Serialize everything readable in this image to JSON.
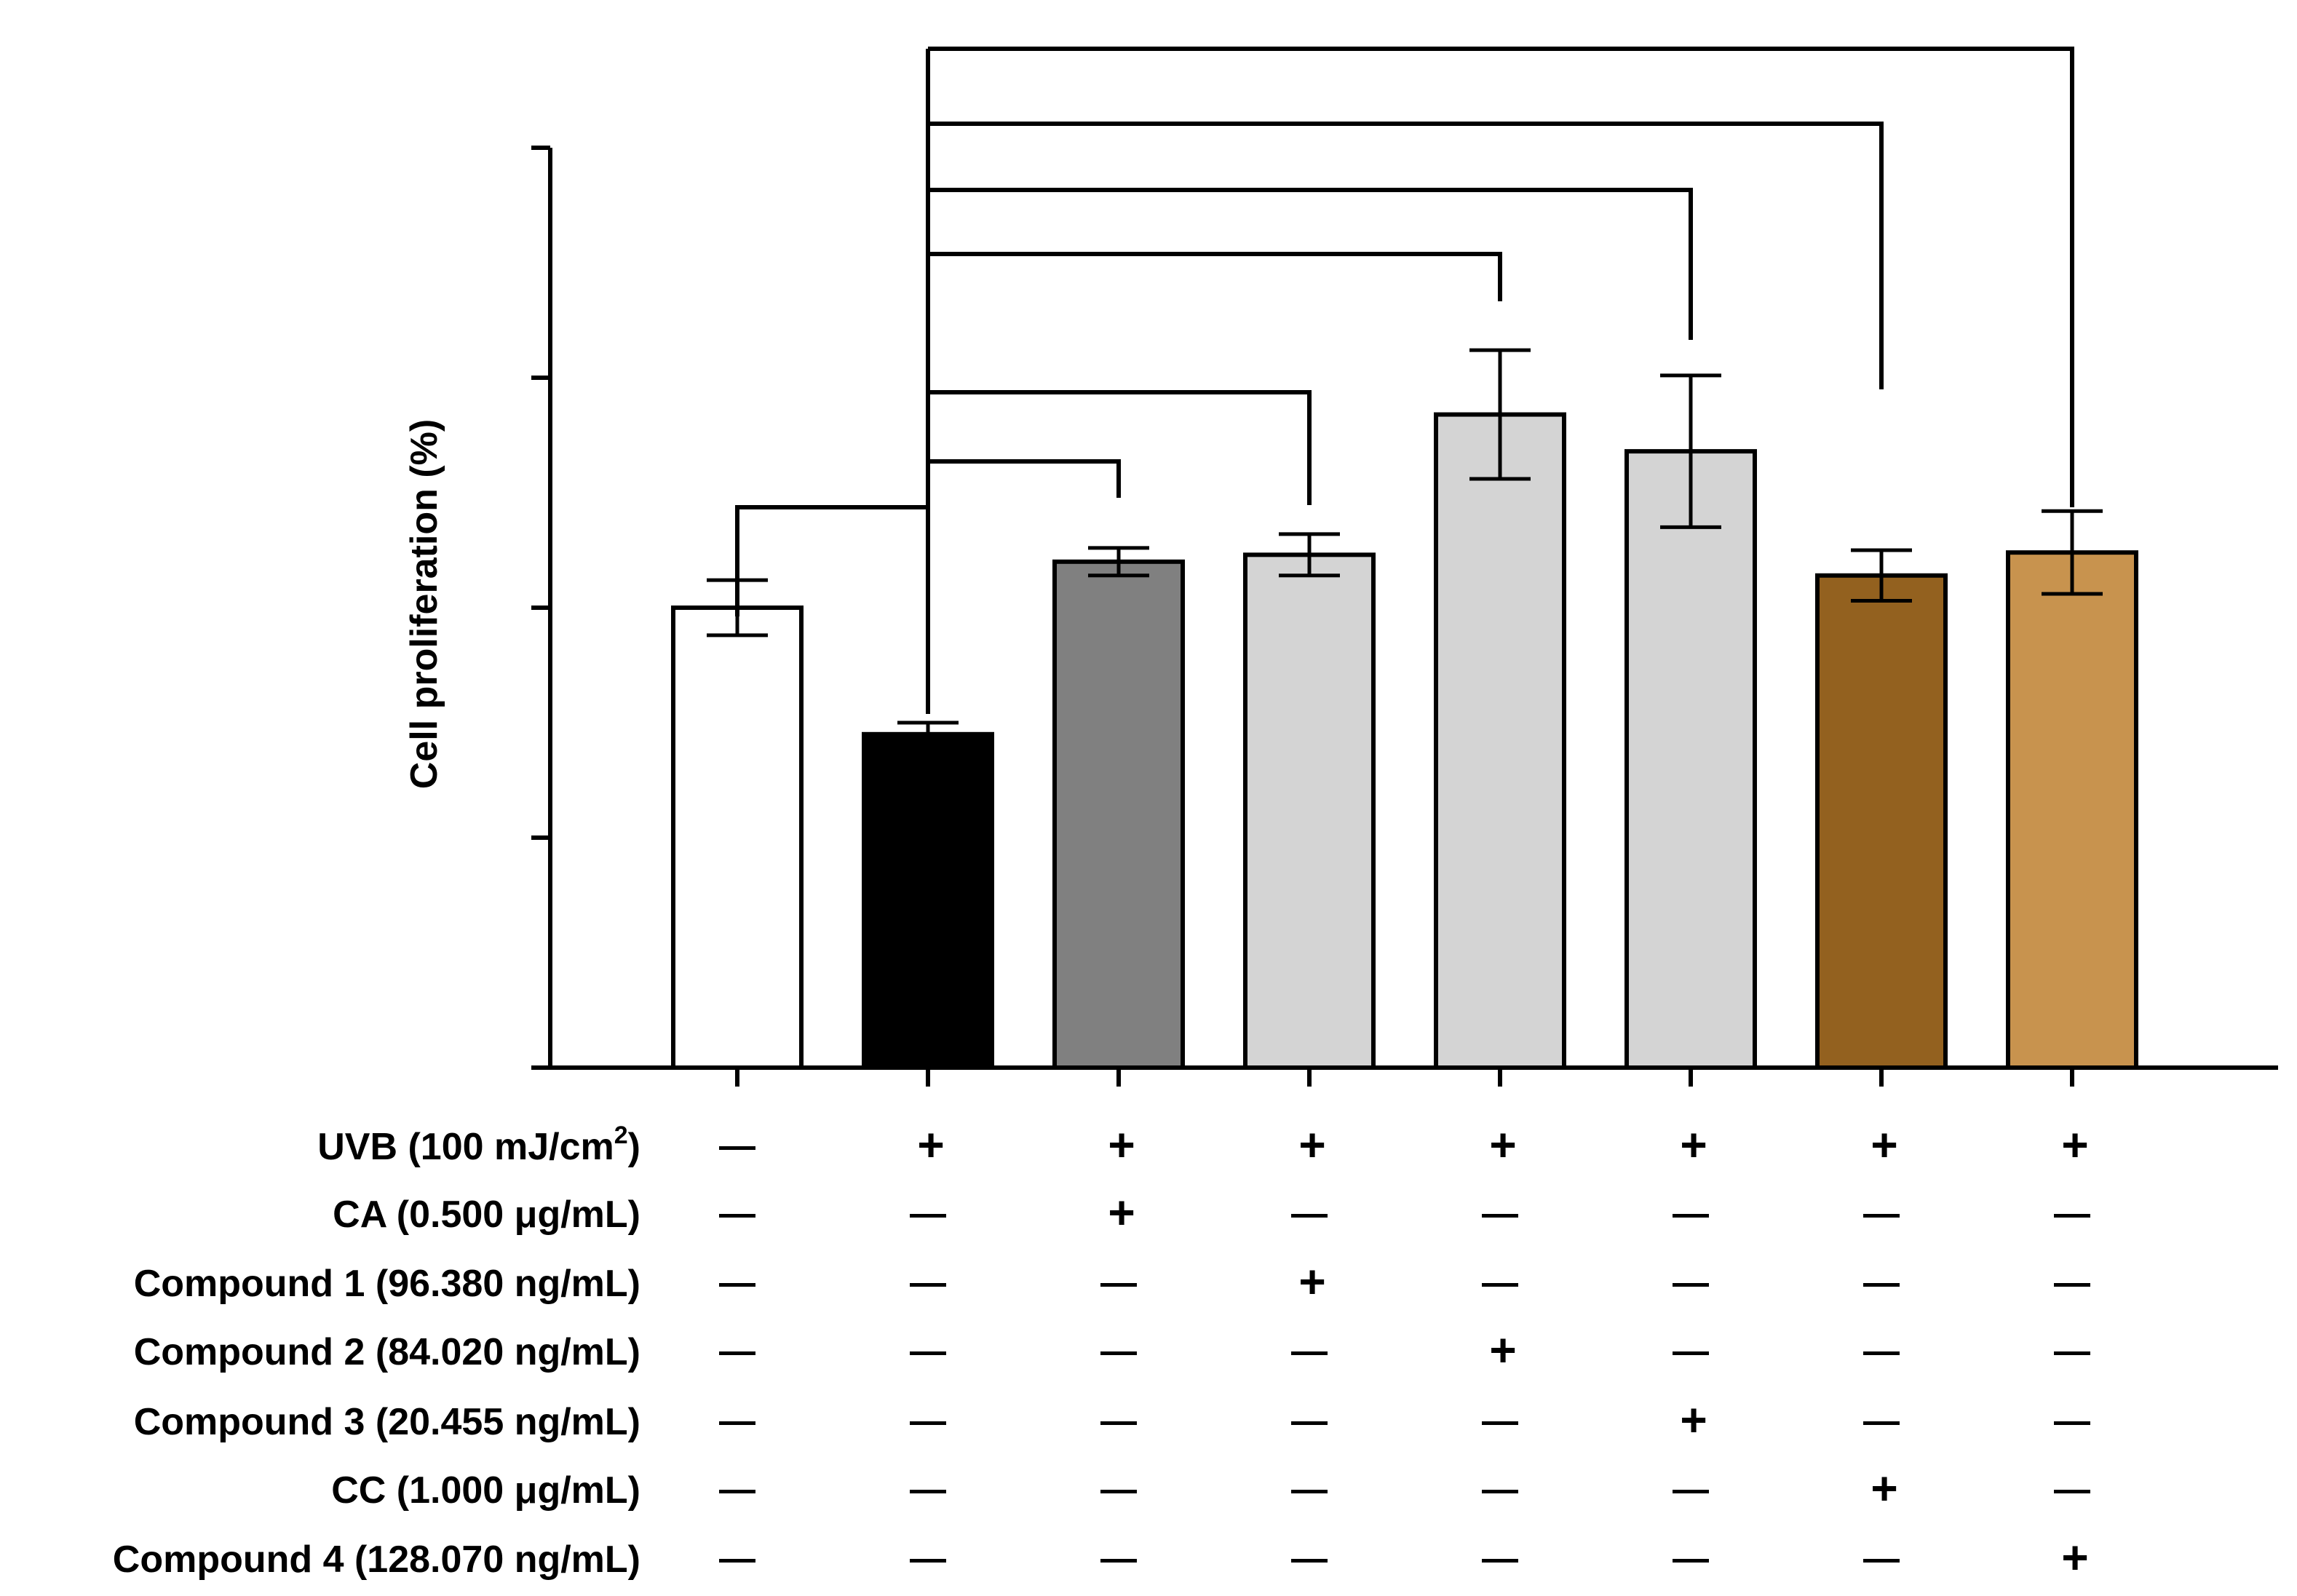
{
  "chart_data": {
    "type": "bar",
    "title": "",
    "xlabel": "",
    "ylabel": "Cell proliferation (%)",
    "ylim": [
      0,
      200
    ],
    "yticks": [
      "0",
      "50",
      "100",
      "150",
      "200"
    ],
    "grid": false,
    "legend": "none",
    "values": [
      100,
      72.5,
      110,
      111.5,
      142,
      134,
      107,
      112
    ],
    "errors": [
      6,
      2.5,
      3,
      4.5,
      14,
      16.5,
      5.5,
      9
    ],
    "bar_colors": [
      "#ffffff",
      "#000000",
      "#808080",
      "#d4d4d4",
      "#d4d4d4",
      "#d4d4d4",
      "#93611f",
      "#c8934e"
    ],
    "treatments": [
      {
        "label": "UVB (100 mJ/cm",
        "sup": "2",
        "label_end": ")",
        "marks": [
          "—",
          "+",
          "+",
          "+",
          "+",
          "+",
          "+",
          "+"
        ]
      },
      {
        "label": "CA (0.500 μg/mL)",
        "marks": [
          "—",
          "—",
          "+",
          "—",
          "—",
          "—",
          "—",
          "—"
        ]
      },
      {
        "label": "Compound 1 (96.380 ng/mL)",
        "marks": [
          "—",
          "—",
          "—",
          "+",
          "—",
          "—",
          "—",
          "—"
        ]
      },
      {
        "label": "Compound 2 (84.020 ng/mL)",
        "marks": [
          "—",
          "—",
          "—",
          "—",
          "+",
          "—",
          "—",
          "—"
        ]
      },
      {
        "label": "Compound 3 (20.455 ng/mL)",
        "marks": [
          "—",
          "—",
          "—",
          "—",
          "—",
          "+",
          "—",
          "—"
        ]
      },
      {
        "label": "CC (1.000 μg/mL)",
        "marks": [
          "—",
          "—",
          "—",
          "—",
          "—",
          "—",
          "+",
          "—"
        ]
      },
      {
        "label": "Compound 4 (128.070 ng/mL)",
        "marks": [
          "—",
          "—",
          "—",
          "—",
          "—",
          "—",
          "—",
          "+"
        ]
      }
    ],
    "annotations": [
      {
        "from": 0,
        "to": 1,
        "label": "***"
      },
      {
        "from": 1,
        "to": 2,
        "label": "***"
      },
      {
        "from": 1,
        "to": 3,
        "label": "***"
      },
      {
        "from": 1,
        "to": 4,
        "label": "***"
      },
      {
        "from": 1,
        "to": 5,
        "label": "***"
      },
      {
        "from": 1,
        "to": 6,
        "label": "***"
      },
      {
        "from": 1,
        "to": 7,
        "label": "***"
      }
    ]
  }
}
